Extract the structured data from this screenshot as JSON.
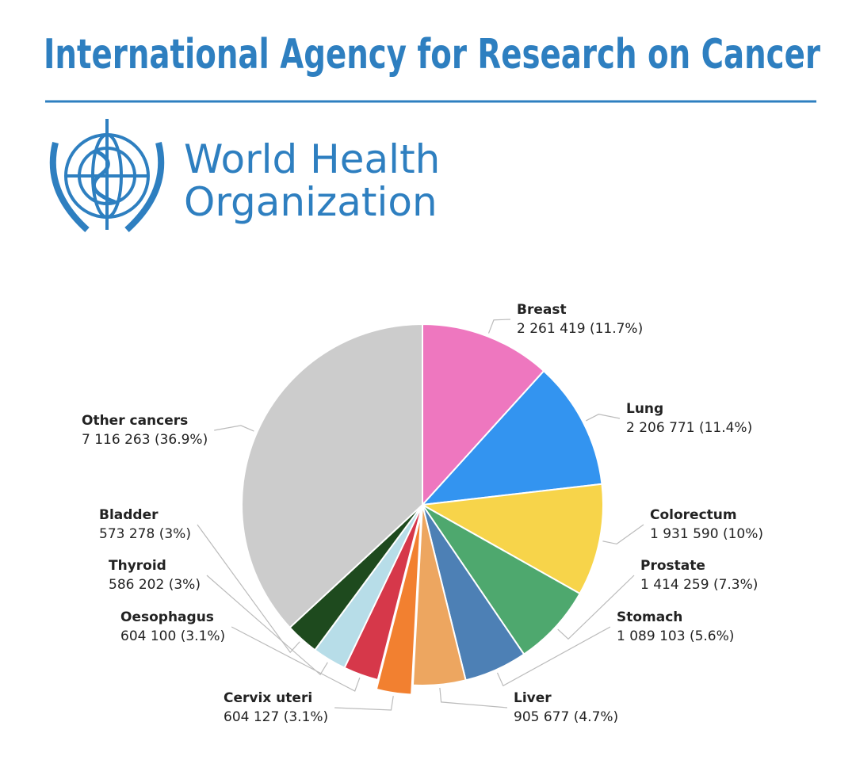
{
  "header": {
    "title": "International Agency for Research on Cancer",
    "org_line1": "World Health",
    "org_line2": "Organization"
  },
  "chart_data": {
    "type": "pie",
    "categories": [
      "Breast",
      "Lung",
      "Colorectum",
      "Prostate",
      "Stomach",
      "Liver",
      "Cervix uteri",
      "Oesophagus",
      "Thyroid",
      "Bladder",
      "Other cancers"
    ],
    "values": [
      2261419,
      2206771,
      1931590,
      1414259,
      1089103,
      905677,
      604127,
      604100,
      586202,
      573278,
      7116263
    ],
    "value_labels": [
      "2 261 419",
      "2 206 771",
      "1 931 590",
      "1 414 259",
      "1 089 103",
      "905 677",
      "604 127",
      "604 100",
      "586 202",
      "573 278",
      "7 116 263"
    ],
    "percents": [
      11.7,
      11.4,
      10,
      7.3,
      5.6,
      4.7,
      3.1,
      3.1,
      3,
      3,
      36.9
    ],
    "percent_labels": [
      "(11.7%)",
      "(11.4%)",
      "(10%)",
      "(7.3%)",
      "(5.6%)",
      "(4.7%)",
      "(3.1%)",
      "(3.1%)",
      "(3%)",
      "(3%)",
      "(36.9%)"
    ],
    "colors": [
      "#ee77bf",
      "#3394f0",
      "#f7d44a",
      "#4ea86e",
      "#4d80b5",
      "#eda660",
      "#f28030",
      "#d6384a",
      "#b7dde8",
      "#1e4a1e",
      "#cccccc"
    ],
    "exploded": [
      "Cervix uteri"
    ]
  }
}
